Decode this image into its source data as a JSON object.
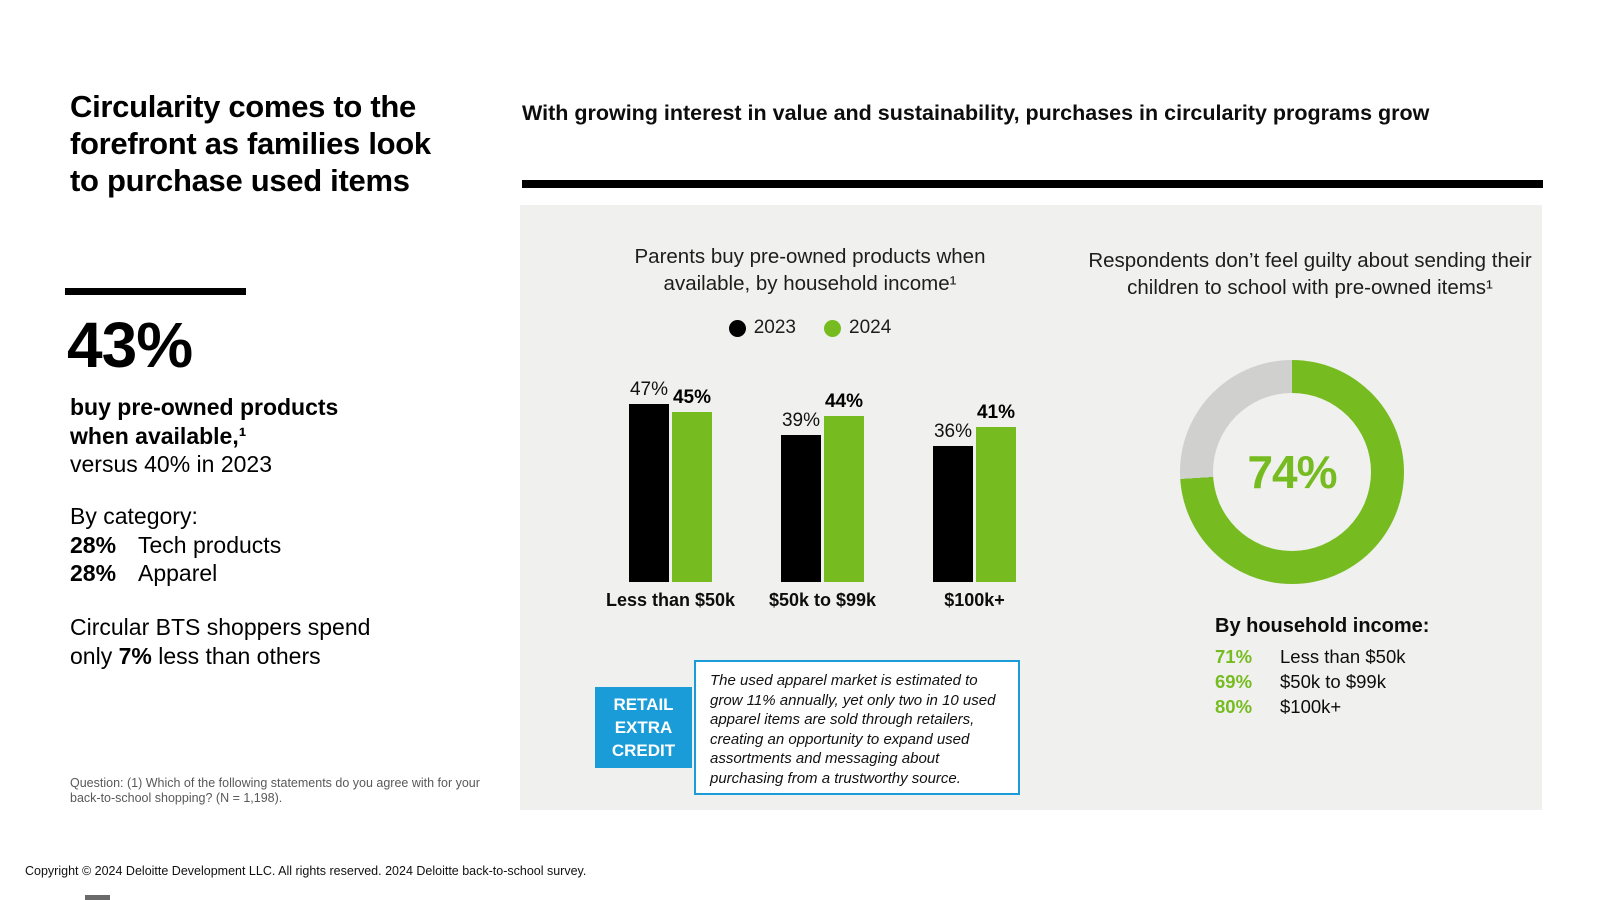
{
  "colors": {
    "green": "#76BC21",
    "black": "#000000",
    "blue": "#1A9CD8",
    "panel_bg": "#F0F0EF",
    "donut_track": "#D0D0CE"
  },
  "left": {
    "title": "Circularity comes to the forefront as families look to purchase used items",
    "stat": "43%",
    "stat_desc_bold_1": "buy pre-owned products",
    "stat_desc_bold_2": "when available,¹",
    "stat_desc_rest": "versus 40% in 2023",
    "by_category_heading": "By category:",
    "categories": [
      {
        "value": "28%",
        "label": "Tech products"
      },
      {
        "value": "28%",
        "label": "Apparel"
      }
    ],
    "spend_line1": "Circular BTS shoppers spend",
    "spend_line2_pre": "only ",
    "spend_line2_bold": "7%",
    "spend_line2_post": " less than others",
    "question": "Question: (1) Which of the following statements do you agree with for your back-to-school shopping? (N = 1,198)."
  },
  "header": {
    "title": "With growing interest in value and sustainability, purchases in circularity programs grow"
  },
  "callout": {
    "tag": "RETAIL EXTRA CREDIT",
    "text": "The used apparel market is estimated to grow 11% annually, yet only two in 10 used apparel items are sold through retailers, creating an opportunity to expand used assortments and messaging about purchasing from a trustworthy source."
  },
  "footer": "Copyright © 2024 Deloitte Development LLC. All rights reserved. 2024 Deloitte back-to-school survey.",
  "chart_data": [
    {
      "type": "bar",
      "title": "Parents buy pre-owned products when available, by household income¹",
      "categories": [
        "Less than $50k",
        "$50k to $99k",
        "$100k+"
      ],
      "series": [
        {
          "name": "2023",
          "color": "#000000",
          "values": [
            47,
            39,
            36
          ]
        },
        {
          "name": "2024",
          "color": "#76BC21",
          "values": [
            45,
            44,
            41
          ]
        }
      ],
      "unit": "%",
      "ylim": [
        0,
        50
      ],
      "legend_position": "top",
      "value_labels": true,
      "grid": false
    },
    {
      "type": "pie",
      "variant": "donut",
      "title": "Respondents don’t feel guilty about sending their children to school with pre-owned items¹",
      "center_label": "74%",
      "start_angle_deg": 0,
      "slices": [
        {
          "label": "don’t feel guilty",
          "value": 74,
          "color": "#76BC21"
        },
        {
          "label": "remainder",
          "value": 26,
          "color": "#D0D0CE"
        }
      ],
      "breakdown_heading": "By household income:",
      "breakdown": [
        {
          "value": "71%",
          "label": "Less than $50k"
        },
        {
          "value": "69%",
          "label": "$50k to $99k"
        },
        {
          "value": "80%",
          "label": "$100k+"
        }
      ]
    }
  ]
}
